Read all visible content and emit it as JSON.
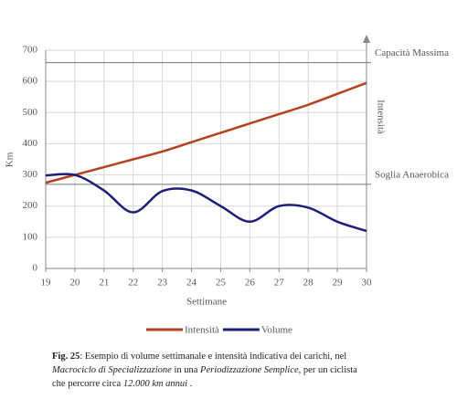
{
  "chart_data": {
    "type": "line",
    "x": [
      19,
      20,
      21,
      22,
      23,
      24,
      25,
      26,
      27,
      28,
      29,
      30
    ],
    "series": [
      {
        "name": "Intensità",
        "color": "#b5401b",
        "values": [
          275,
          300,
          325,
          350,
          375,
          405,
          435,
          465,
          495,
          525,
          560,
          595
        ]
      },
      {
        "name": "Volume",
        "color": "#1c1f7a",
        "values": [
          298,
          300,
          250,
          180,
          248,
          250,
          200,
          150,
          200,
          195,
          150,
          120
        ]
      }
    ],
    "xlim": [
      19,
      30
    ],
    "ylim": [
      0,
      700
    ],
    "xticks": [
      19,
      20,
      21,
      22,
      23,
      24,
      25,
      26,
      27,
      28,
      29,
      30
    ],
    "yticks": [
      0,
      100,
      200,
      300,
      400,
      500,
      600,
      700
    ],
    "grid": true,
    "x_label": "Settimane",
    "y_label": "Km",
    "y2_label": "Intensità",
    "reference_lines": [
      {
        "value": 660,
        "label": "Capacità Massima"
      },
      {
        "value": 270,
        "label": "Soglia Anaerobica"
      }
    ],
    "legend": "bottom"
  },
  "caption": {
    "parts": [
      "Fig. 25",
      ": Esempio di volume settimanale e intensità indicativa dei carichi, nel ",
      "Macrociclo di Specializzazione",
      " in una ",
      "Periodizzazione Semplice",
      ", per un ciclista che percorre circa ",
      "12.000 km annui",
      " ."
    ]
  }
}
